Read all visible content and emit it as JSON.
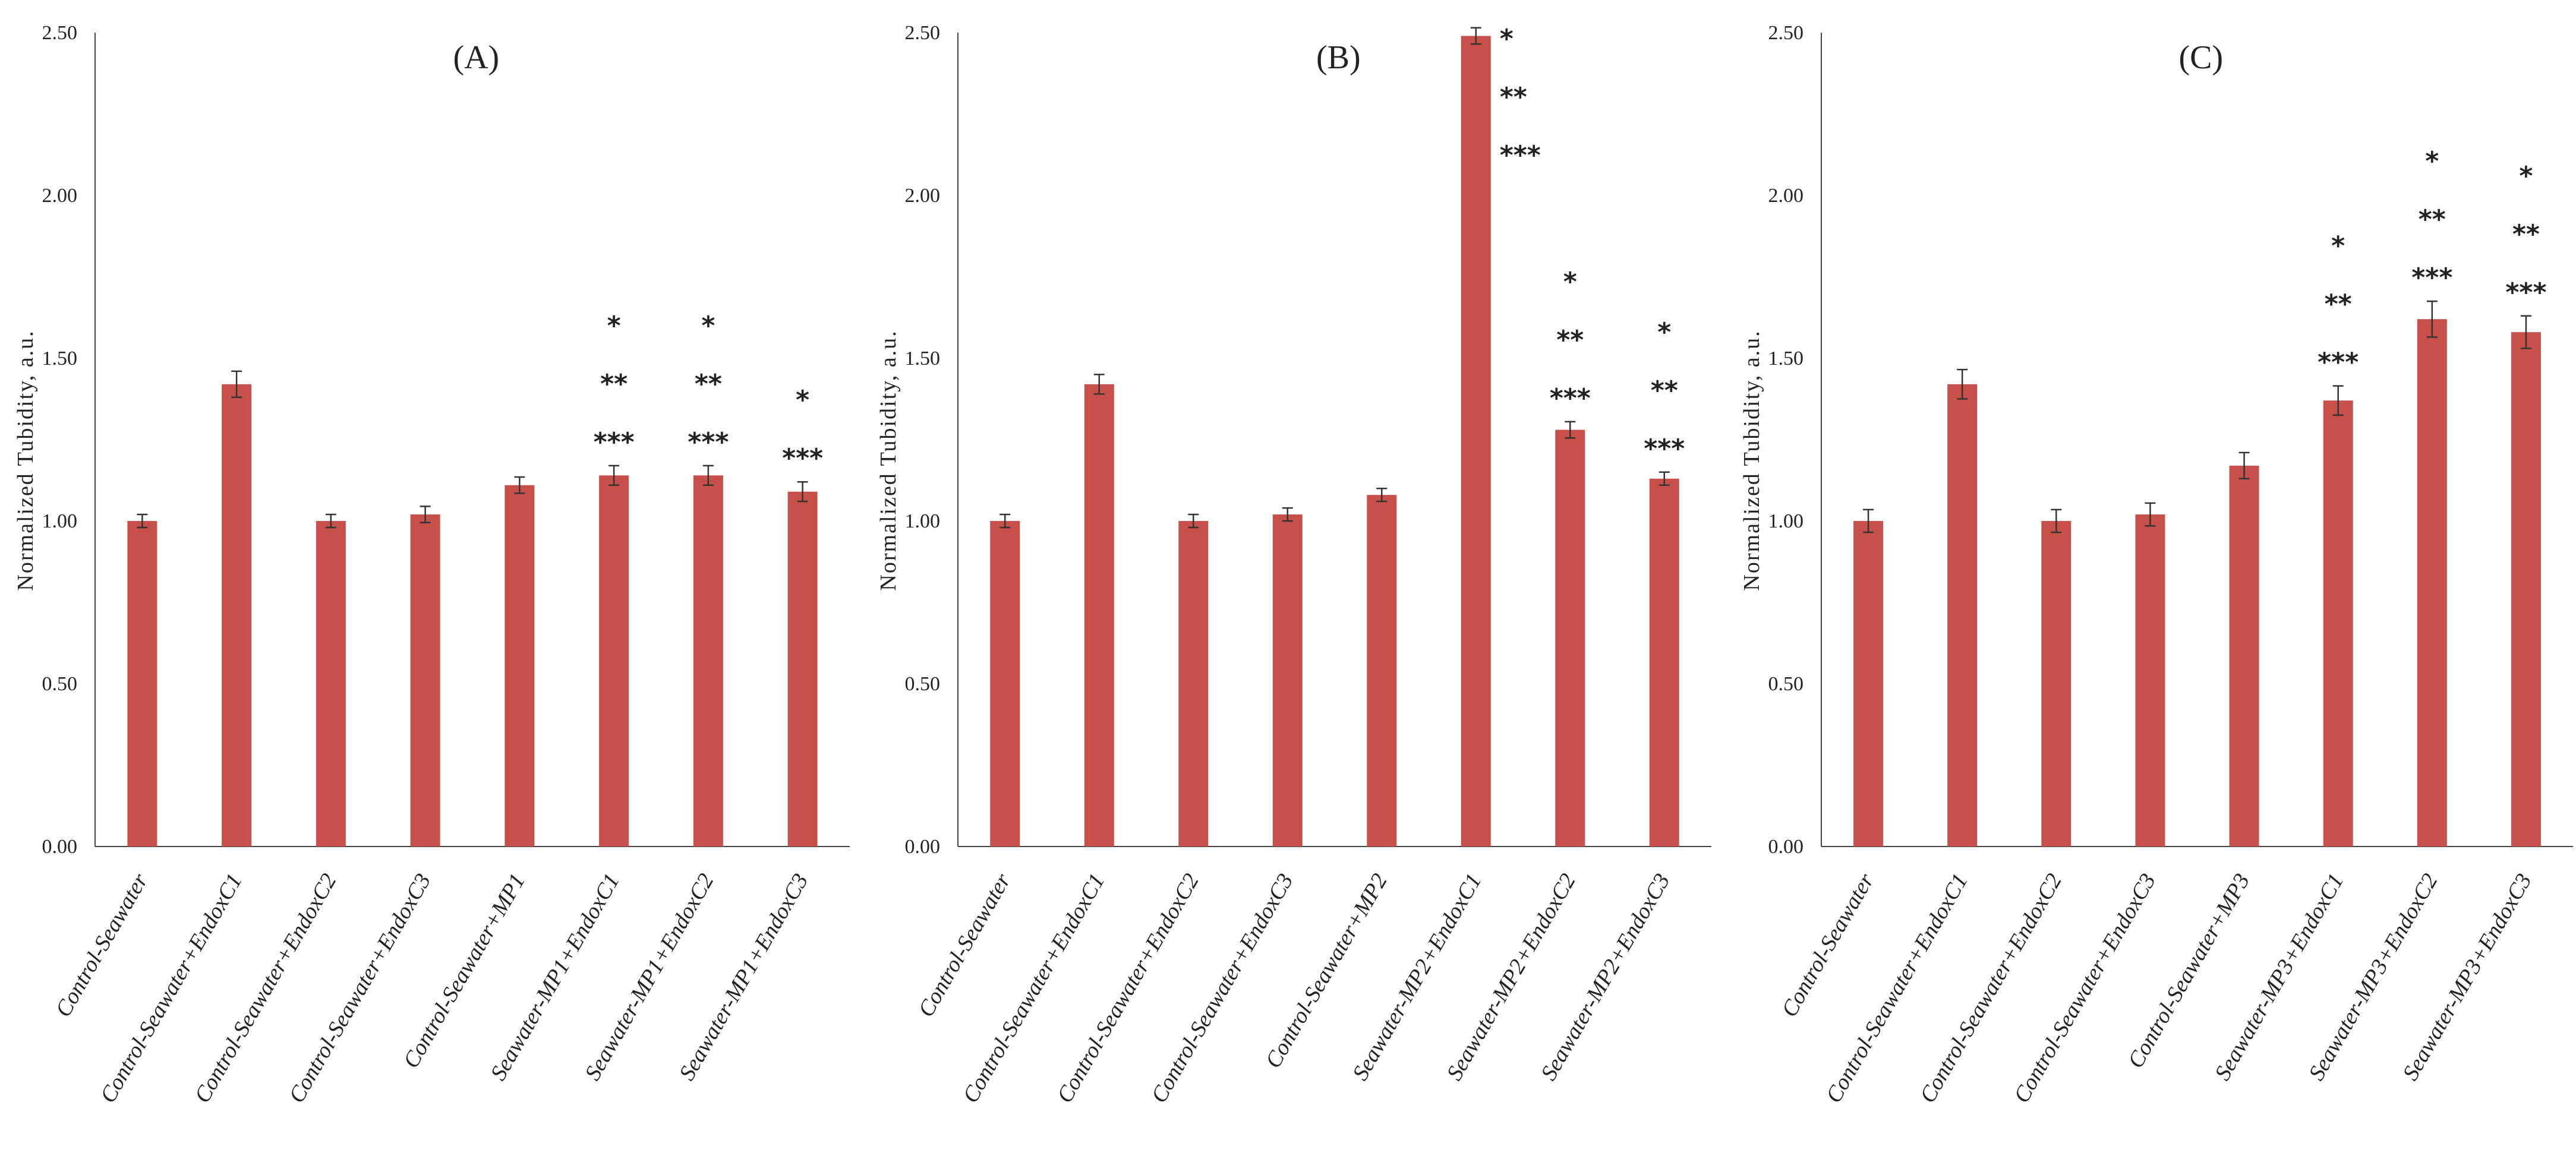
{
  "chart_data": [
    {
      "type": "bar",
      "title": "(A)",
      "xlabel": "",
      "ylabel": "Normalized Tubidity, a.u.",
      "ylim": [
        0,
        2.5
      ],
      "yticks": [
        "0.00",
        "0.50",
        "1.00",
        "1.50",
        "2.00",
        "2.50"
      ],
      "categories": [
        "Control-Seawater",
        "Control-Seawater+EndoxC1",
        "Control-Seawater+EndoxC2",
        "Control-Seawater+EndoxC3",
        "Control-Seawater+MP1",
        "Seawater-MP1+EndoxC1",
        "Seawater-MP1+EndoxC2",
        "Seawater-MP1+EndoxC3"
      ],
      "values": [
        1.0,
        1.42,
        1.0,
        1.02,
        1.11,
        1.14,
        1.14,
        1.09
      ],
      "errors": [
        0.02,
        0.04,
        0.02,
        0.025,
        0.025,
        0.03,
        0.03,
        0.03
      ],
      "significance": [
        [],
        [],
        [],
        [],
        [],
        [
          "*",
          "**",
          "***"
        ],
        [
          "*",
          "**",
          "***"
        ],
        [
          "*",
          "***"
        ]
      ],
      "bar_color": "#c8504a",
      "grid": false
    },
    {
      "type": "bar",
      "title": "(B)",
      "xlabel": "",
      "ylabel": "Normalized Tubidity, a.u.",
      "ylim": [
        0,
        2.5
      ],
      "yticks": [
        "0.00",
        "0.50",
        "1.00",
        "1.50",
        "2.00",
        "2.50"
      ],
      "categories": [
        "Control-Seawater",
        "Control-Seawater+EndoxC1",
        "Control-Seawater+EndoxC2",
        "Control-Seawater+EndoxC3",
        "Control-Seawater+MP2",
        "Seawater-MP2+EndoxC1",
        "Seawater-MP2+EndoxC2",
        "Seawater-MP2+EndoxC3"
      ],
      "values": [
        1.0,
        1.42,
        1.0,
        1.02,
        1.08,
        2.49,
        1.28,
        1.13
      ],
      "errors": [
        0.02,
        0.03,
        0.02,
        0.02,
        0.02,
        0.025,
        0.025,
        0.02
      ],
      "significance": [
        [],
        [],
        [],
        [],
        [],
        [
          "*",
          "**",
          "***"
        ],
        [
          "*",
          "**",
          "***"
        ],
        [
          "*",
          "**",
          "***"
        ]
      ],
      "bar_color": "#c8504a",
      "grid": false
    },
    {
      "type": "bar",
      "title": "(C)",
      "xlabel": "",
      "ylabel": "Normalized Tubidity, a.u.",
      "ylim": [
        0,
        2.5
      ],
      "yticks": [
        "0.00",
        "0.50",
        "1.00",
        "1.50",
        "2.00",
        "2.50"
      ],
      "categories": [
        "Control-Seawater",
        "Control-Seawater+EndoxC1",
        "Control-Seawater+EndoxC2",
        "Control-Seawater+EndoxC3",
        "Control-Seawater+MP3",
        "Seawater-MP3+EndoxC1",
        "Seawater-MP3+EndoxC2",
        "Seawater-MP3+EndoxC3"
      ],
      "values": [
        1.0,
        1.42,
        1.0,
        1.02,
        1.17,
        1.37,
        1.62,
        1.58
      ],
      "errors": [
        0.035,
        0.045,
        0.035,
        0.035,
        0.04,
        0.045,
        0.055,
        0.05
      ],
      "significance": [
        [],
        [],
        [],
        [],
        [],
        [
          "*",
          "**",
          "***"
        ],
        [
          "*",
          "**",
          "***"
        ],
        [
          "*",
          "**",
          "***"
        ]
      ],
      "bar_color": "#c8504a",
      "grid": false
    }
  ]
}
